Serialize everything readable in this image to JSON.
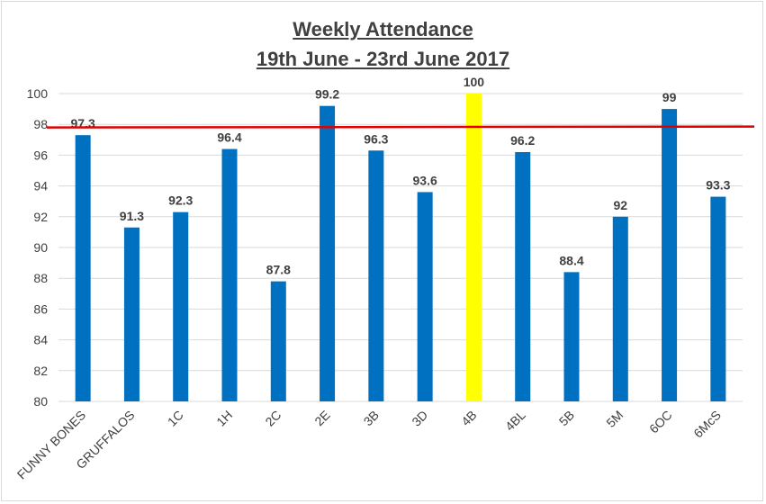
{
  "chart_data": {
    "type": "bar",
    "title": "Weekly Attendance",
    "subtitle": "19th June - 23rd June 2017",
    "categories": [
      "FUNNY BONES",
      "GRUFFALOS",
      "1C",
      "1H",
      "2C",
      "2E",
      "3B",
      "3D",
      "4B",
      "4BL",
      "5B",
      "5M",
      "6OC",
      "6McS"
    ],
    "values": [
      97.3,
      91.3,
      92.3,
      96.4,
      87.8,
      99.2,
      96.3,
      93.6,
      100,
      96.2,
      88.4,
      92,
      99,
      93.3
    ],
    "data_labels": [
      "97.3",
      "91.3",
      "92.3",
      "96.4",
      "87.8",
      "99.2",
      "96.3",
      "93.6",
      "100",
      "96.2",
      "88.4",
      "92",
      "99",
      "93.3"
    ],
    "highlight_category": "4B",
    "ylim": [
      80,
      100
    ],
    "yticks": [
      80,
      82,
      84,
      86,
      88,
      90,
      92,
      94,
      96,
      98,
      100
    ],
    "target_line_value": 97.8,
    "grid": true,
    "legend": "none",
    "xlabel": "",
    "ylabel": "",
    "colors": {
      "bar": "#0070c0",
      "highlight": "#ffff00",
      "target_line": "#e00000",
      "grid": "#d9d9d9",
      "text": "#404040"
    }
  }
}
